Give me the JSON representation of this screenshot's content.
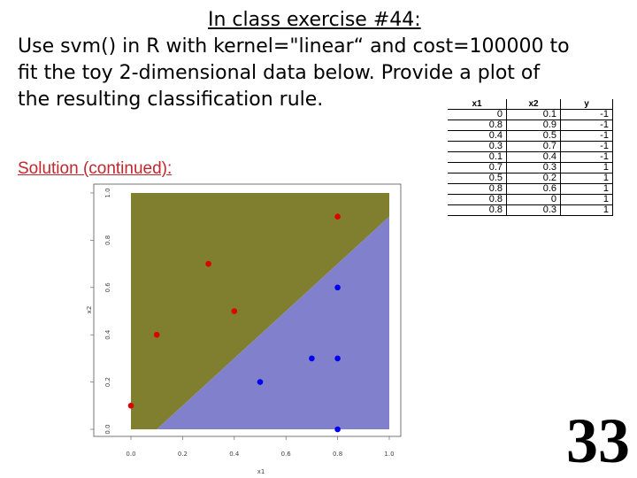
{
  "slide": {
    "title": "In class exercise #44:",
    "instructions": [
      "Use svm() in R with kernel=\"linear“ and cost=100000 to",
      "fit the toy 2-dimensional data below.  Provide a plot of",
      "the resulting classification rule."
    ],
    "solution_label": "Solution (continued):",
    "page_number": "33"
  },
  "table": {
    "headers": [
      "x1",
      "x2",
      "y"
    ],
    "rows": [
      [
        "0",
        "0.1",
        "-1"
      ],
      [
        "0.8",
        "0.9",
        "-1"
      ],
      [
        "0.4",
        "0.5",
        "-1"
      ],
      [
        "0.3",
        "0.7",
        "-1"
      ],
      [
        "0.1",
        "0.4",
        "-1"
      ],
      [
        "0.7",
        "0.3",
        "1"
      ],
      [
        "0.5",
        "0.2",
        "1"
      ],
      [
        "0.8",
        "0.6",
        "1"
      ],
      [
        "0.8",
        "0",
        "1"
      ],
      [
        "0.8",
        "0.3",
        "1"
      ]
    ]
  },
  "colors": {
    "region_neg": "#7f7f2f",
    "region_pos": "#8080cc",
    "point_neg": "#dd0000",
    "point_pos": "#0000ee"
  },
  "chart_data": {
    "type": "scatter",
    "xlabel": "x1",
    "ylabel": "x2",
    "xlim": [
      0,
      1
    ],
    "ylim": [
      0,
      1
    ],
    "x_ticks": [
      "0.0",
      "0.2",
      "0.4",
      "0.6",
      "0.8",
      "1.0"
    ],
    "y_ticks": [
      "0.0",
      "0.2",
      "0.4",
      "0.6",
      "0.8",
      "1.0"
    ],
    "decision_boundary": [
      [
        0.1,
        0.0
      ],
      [
        1.0,
        0.9
      ]
    ],
    "series": [
      {
        "points": [
          [
            0,
            0.1
          ],
          [
            0.8,
            0.9
          ],
          [
            0.4,
            0.5
          ],
          [
            0.3,
            0.7
          ],
          [
            0.1,
            0.4
          ]
        ]
      },
      {
        "points": [
          [
            0.7,
            0.3
          ],
          [
            0.5,
            0.2
          ],
          [
            0.8,
            0.6
          ],
          [
            0.8,
            0
          ],
          [
            0.8,
            0.3
          ]
        ]
      }
    ]
  }
}
